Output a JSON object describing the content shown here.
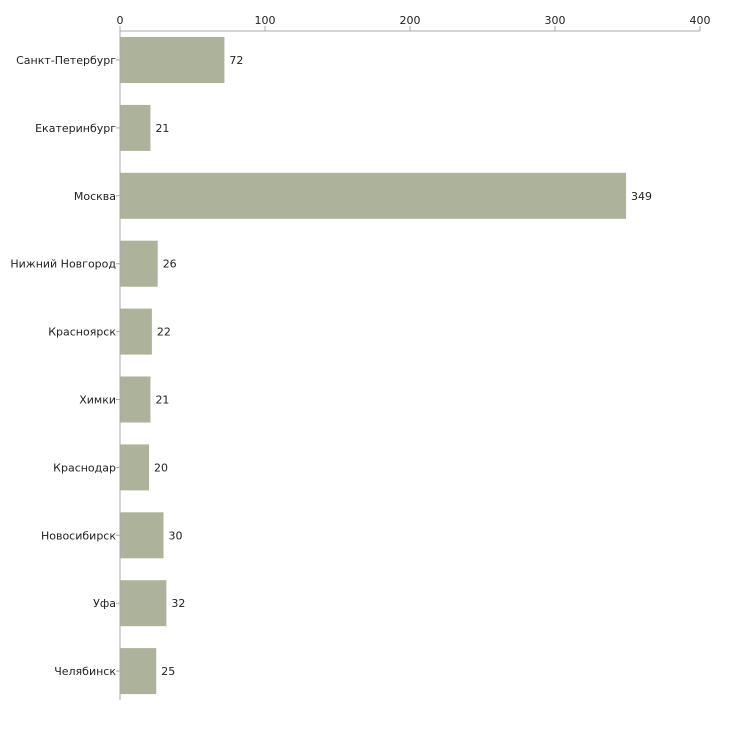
{
  "chart_data": {
    "type": "bar",
    "orientation": "horizontal",
    "title": "",
    "xlabel": "",
    "ylabel": "",
    "xlim": [
      0,
      400
    ],
    "x_ticks": [
      0,
      100,
      200,
      300,
      400
    ],
    "x_tick_labels": [
      "0",
      "100",
      "200",
      "300",
      "400"
    ],
    "axis_position": "top",
    "grid": false,
    "legend": "none",
    "categories": [
      "Санкт-Петербург",
      "Екатеринбург",
      "Москва",
      "Нижний Новгород",
      "Красноярск",
      "Химки",
      "Краснодар",
      "Новосибирск",
      "Уфа",
      "Челябинск"
    ],
    "values": [
      72,
      21,
      349,
      26,
      22,
      21,
      20,
      30,
      32,
      25
    ],
    "value_labels": [
      "72",
      "21",
      "349",
      "26",
      "22",
      "21",
      "20",
      "30",
      "32",
      "25"
    ],
    "bar_color": "#adb29a"
  }
}
